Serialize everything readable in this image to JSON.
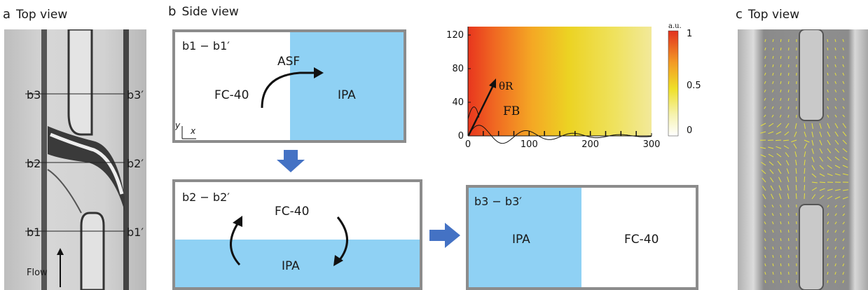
{
  "panel_a": {
    "letter": "a",
    "title": "Top view",
    "lines": [
      {
        "left": "b3",
        "right": "b3′"
      },
      {
        "left": "b2",
        "right": "b2′"
      },
      {
        "left": "b1",
        "right": "b1′"
      }
    ],
    "flow_label": "Flow"
  },
  "panel_b": {
    "letter": "b",
    "title": "Side view",
    "box1": {
      "section": "b1 − b1′",
      "left_fluid": "FC-40",
      "right_fluid": "IPA",
      "arrow_label": "ASF",
      "axis_y": "y",
      "axis_x": "x"
    },
    "box2": {
      "section": "b2 − b2′",
      "top_fluid": "FC-40",
      "bottom_fluid": "IPA"
    },
    "box3": {
      "section": "b3 − b3′",
      "left_fluid": "IPA",
      "right_fluid": "FC-40"
    }
  },
  "panel_c": {
    "letter": "c",
    "title": "Top view"
  },
  "chart_data": {
    "type": "heatmap",
    "xlim": [
      0,
      300
    ],
    "ylim": [
      0,
      130
    ],
    "xticks": [
      "0",
      "100",
      "200",
      "300"
    ],
    "yticks": [
      "0",
      "40",
      "80",
      "120"
    ],
    "colorbar": {
      "unit": "a.u.",
      "ticks": [
        "0",
        "0.5",
        "1"
      ],
      "range": [
        0,
        1
      ]
    },
    "annotations": {
      "angle": "θR",
      "force": "FB"
    },
    "colors": {
      "high": "#e83a20",
      "mid": "#f0e020",
      "low": "#ffffff"
    }
  }
}
